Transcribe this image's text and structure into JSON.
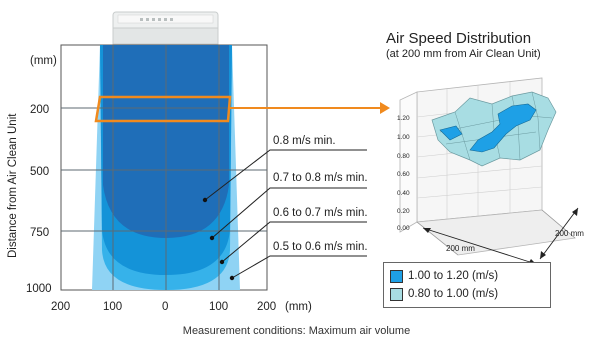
{
  "left_diagram": {
    "y_axis_label": "Distance from Air Clean Unit",
    "y_unit": "(mm)",
    "y_ticks": [
      "200",
      "500",
      "750",
      "1000"
    ],
    "x_ticks": [
      "200",
      "100",
      "0",
      "100",
      "200"
    ],
    "x_unit": "(mm)",
    "zones": [
      {
        "label": "0.8 m/s min.",
        "color": "#1f6eb8"
      },
      {
        "label": "0.7 to 0.8 m/s min.",
        "color": "#1493d8"
      },
      {
        "label": "0.6 to 0.7 m/s min.",
        "color": "#36b2ea"
      },
      {
        "label": "0.5 to 0.6 m/s min.",
        "color": "#8fd3f4"
      }
    ],
    "highlight_color": "#f08a1e"
  },
  "right_chart": {
    "title": "Air Speed Distribution",
    "subtitle": "(at 200 mm from Air Clean Unit)",
    "z_ticks": [
      "1.20",
      "1.00",
      "0.80",
      "0.60",
      "0.40",
      "0.20",
      "0.00"
    ],
    "x_label": "200 mm",
    "y_label": "200 mm",
    "legend": [
      {
        "label": "1.00 to 1.20 (m/s)",
        "color": "#1ea0e6"
      },
      {
        "label": "0.80 to 1.00 (m/s)",
        "color": "#a8dde3"
      }
    ]
  },
  "caption": "Measurement conditions: Maximum air volume"
}
